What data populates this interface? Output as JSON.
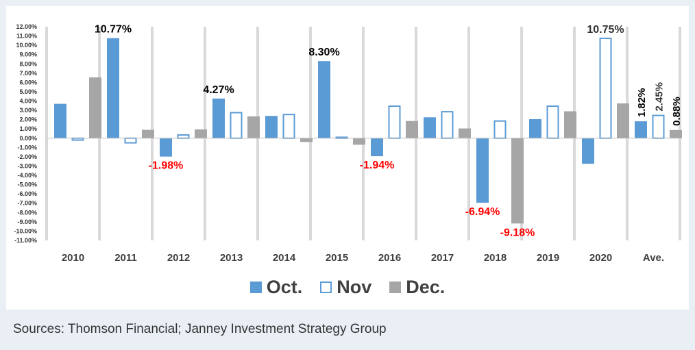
{
  "chart_data": {
    "type": "bar",
    "categories": [
      "2010",
      "2011",
      "2012",
      "2013",
      "2014",
      "2015",
      "2016",
      "2017",
      "2018",
      "2019",
      "2020",
      "Ave."
    ],
    "series": [
      {
        "name": "Oct.",
        "color": "#5b9bd5",
        "style": "filled",
        "values": [
          3.7,
          10.77,
          -1.98,
          4.27,
          2.4,
          8.3,
          -1.94,
          2.25,
          -6.94,
          2.05,
          -2.75,
          1.82
        ]
      },
      {
        "name": "Nov",
        "color": "#5b9bd5",
        "style": "outline",
        "values": [
          -0.2,
          -0.5,
          0.35,
          2.75,
          2.55,
          0.1,
          3.45,
          2.85,
          1.85,
          3.45,
          10.75,
          2.45
        ]
      },
      {
        "name": "Dec.",
        "color": "#a6a6a6",
        "style": "filled",
        "values": [
          6.55,
          0.9,
          0.95,
          2.35,
          -0.4,
          -0.7,
          1.85,
          1.05,
          -9.18,
          2.9,
          3.75,
          0.88
        ]
      }
    ],
    "ylim": [
      -11,
      12
    ],
    "ytick_step": 1,
    "ytick_labels": [
      "12.00%",
      "11.00%",
      "10.00%",
      "9.00%",
      "8.00%",
      "7.00%",
      "6.00%",
      "5.00%",
      "4.00%",
      "3.00%",
      "2.00%",
      "1.00%",
      "0.00%",
      "-1.00%",
      "-2.00%",
      "-3.00%",
      "-4.00%",
      "-5.00%",
      "-6.00%",
      "-7.00%",
      "-8.00%",
      "-9.00%",
      "-10.00%",
      "-11.00%"
    ],
    "separators": "light gray vertical bands between years",
    "legend_position": "bottom",
    "annotations": [
      {
        "text": "10.77%",
        "category": "2011",
        "series": "Oct.",
        "color": "#000000"
      },
      {
        "text": "-1.98%",
        "category": "2012",
        "series": "Oct.",
        "color": "#ff0000"
      },
      {
        "text": "4.27%",
        "category": "2013",
        "series": "Oct.",
        "color": "#000000"
      },
      {
        "text": "8.30%",
        "category": "2015",
        "series": "Oct.",
        "color": "#000000"
      },
      {
        "text": "-1.94%",
        "category": "2016",
        "series": "Oct.",
        "color": "#ff0000"
      },
      {
        "text": "-6.94%",
        "category": "2018",
        "series": "Oct.",
        "color": "#ff0000"
      },
      {
        "text": "-9.18%",
        "category": "2018",
        "series": "Dec.",
        "color": "#ff0000"
      },
      {
        "text": "10.75%",
        "category": "2020",
        "series": "Nov",
        "color": "#333333"
      },
      {
        "text": "1.82%",
        "category": "Ave.",
        "series": "Oct.",
        "color": "#000000",
        "rotated": true
      },
      {
        "text": "2.45%",
        "category": "Ave.",
        "series": "Nov",
        "color": "#333333",
        "rotated": true
      },
      {
        "text": "0.88%",
        "category": "Ave.",
        "series": "Dec.",
        "color": "#000000",
        "rotated": true
      }
    ]
  },
  "source_note": "Sources: Thomson Financial; Janney Investment Strategy Group"
}
